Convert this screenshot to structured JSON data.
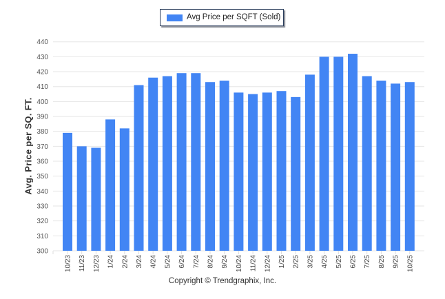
{
  "chart_data": {
    "type": "bar",
    "title": "",
    "xlabel": "",
    "ylabel": "Avg. Price per SQ. FT.",
    "ylim": [
      300,
      440
    ],
    "yticks": [
      "300",
      "310",
      "320",
      "330",
      "340",
      "350",
      "360",
      "370",
      "380",
      "390",
      "400",
      "410",
      "420",
      "430",
      "440"
    ],
    "grid": true,
    "legend_position": "top-center",
    "categories": [
      "10/23",
      "11/23",
      "12/23",
      "1/24",
      "2/24",
      "3/24",
      "4/24",
      "5/24",
      "6/24",
      "7/24",
      "8/24",
      "9/24",
      "10/24",
      "11/24",
      "12/24",
      "1/25",
      "2/25",
      "3/25",
      "4/25",
      "5/25",
      "6/25",
      "7/25",
      "8/25",
      "9/25",
      "10/25"
    ],
    "series": [
      {
        "name": "Avg Price per SQFT (Sold)",
        "color": "#4285f4",
        "values": [
          379,
          370,
          369,
          388,
          382,
          411,
          416,
          417,
          419,
          419,
          413,
          414,
          406,
          405,
          406,
          407,
          403,
          418,
          430,
          430,
          432,
          417,
          414,
          412,
          413
        ]
      }
    ]
  },
  "legend": {
    "label": "Avg Price per SQFT (Sold)"
  },
  "footer": {
    "copyright": "Copyright © Trendgraphix, Inc."
  }
}
